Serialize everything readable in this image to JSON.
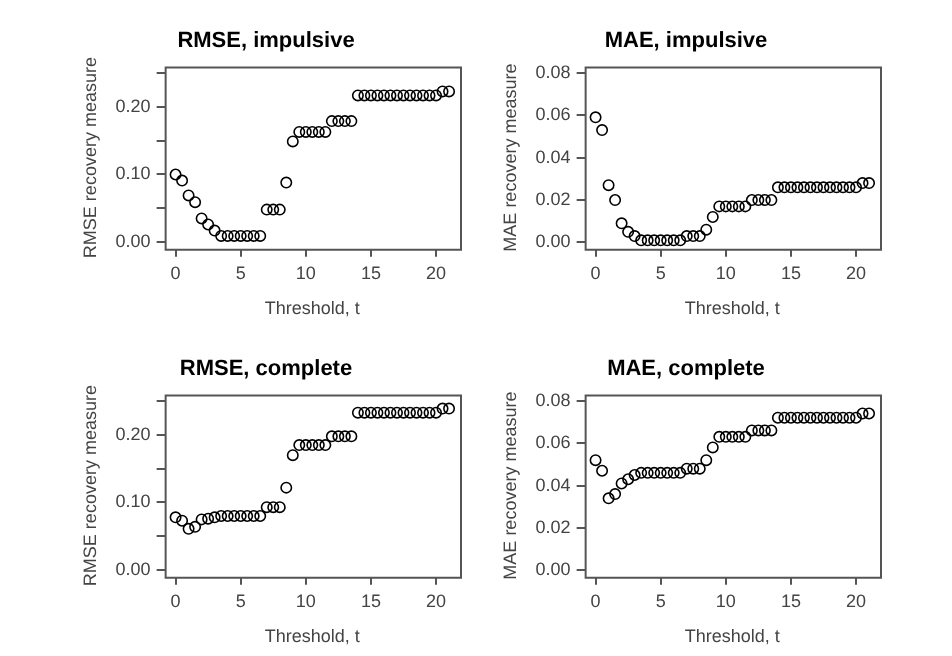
{
  "chart_data": [
    {
      "type": "scatter",
      "title": "RMSE, impulsive",
      "xlabel": "Threshold, t",
      "ylabel": "RMSE recovery measure",
      "marker": "circle",
      "color": "#000000",
      "x": [
        0,
        0.5,
        1,
        1.5,
        2,
        2.5,
        3,
        3.5,
        4,
        4.5,
        5,
        5.5,
        6,
        6.5,
        7,
        7.5,
        8,
        8.5,
        9,
        9.5,
        10,
        10.5,
        11,
        11.5,
        12,
        12.5,
        13,
        13.5,
        14,
        14.5,
        15,
        15.5,
        16,
        16.5,
        17,
        17.5,
        18,
        18.5,
        19,
        19.5,
        20,
        20.5,
        21
      ],
      "values": [
        0.1,
        0.091,
        0.069,
        0.059,
        0.035,
        0.026,
        0.017,
        0.009,
        0.009,
        0.009,
        0.009,
        0.009,
        0.009,
        0.009,
        0.048,
        0.048,
        0.048,
        0.088,
        0.149,
        0.163,
        0.163,
        0.163,
        0.163,
        0.163,
        0.179,
        0.179,
        0.179,
        0.179,
        0.217,
        0.217,
        0.217,
        0.217,
        0.217,
        0.217,
        0.217,
        0.217,
        0.217,
        0.217,
        0.217,
        0.217,
        0.217,
        0.223,
        0.223
      ],
      "xlim": [
        -0.84,
        21.84
      ],
      "xticks": [
        0,
        5,
        10,
        15,
        20
      ],
      "ylim": [
        -0.01,
        0.26
      ],
      "yticks": [
        {
          "value": 0,
          "label": "0.00"
        },
        {
          "value": 0.05,
          "label": null
        },
        {
          "value": 0.1,
          "label": "0.10"
        },
        {
          "value": 0.15,
          "label": null
        },
        {
          "value": 0.2,
          "label": "0.20"
        },
        {
          "value": 0.25,
          "label": null
        }
      ],
      "grid": false,
      "legend": false
    },
    {
      "type": "scatter",
      "title": "MAE, impulsive",
      "xlabel": "Threshold, t",
      "ylabel": "MAE recovery measure",
      "marker": "circle",
      "color": "#000000",
      "x": [
        0,
        0.5,
        1,
        1.5,
        2,
        2.5,
        3,
        3.5,
        4,
        4.5,
        5,
        5.5,
        6,
        6.5,
        7,
        7.5,
        8,
        8.5,
        9,
        9.5,
        10,
        10.5,
        11,
        11.5,
        12,
        12.5,
        13,
        13.5,
        14,
        14.5,
        15,
        15.5,
        16,
        16.5,
        17,
        17.5,
        18,
        18.5,
        19,
        19.5,
        20,
        20.5,
        21
      ],
      "values": [
        0.059,
        0.053,
        0.027,
        0.02,
        0.009,
        0.005,
        0.003,
        0.001,
        0.001,
        0.001,
        0.001,
        0.001,
        0.001,
        0.001,
        0.003,
        0.003,
        0.003,
        0.006,
        0.012,
        0.017,
        0.017,
        0.017,
        0.017,
        0.017,
        0.02,
        0.02,
        0.02,
        0.02,
        0.026,
        0.026,
        0.026,
        0.026,
        0.026,
        0.026,
        0.026,
        0.026,
        0.026,
        0.026,
        0.026,
        0.026,
        0.026,
        0.028,
        0.028
      ],
      "xlim": [
        -0.84,
        21.84
      ],
      "xticks": [
        0,
        5,
        10,
        15,
        20
      ],
      "ylim": [
        -0.003,
        0.083
      ],
      "yticks": [
        {
          "value": 0,
          "label": "0.00"
        },
        {
          "value": 0.02,
          "label": "0.02"
        },
        {
          "value": 0.04,
          "label": "0.04"
        },
        {
          "value": 0.06,
          "label": "0.06"
        },
        {
          "value": 0.08,
          "label": "0.08"
        }
      ],
      "grid": false,
      "legend": false
    },
    {
      "type": "scatter",
      "title": "RMSE, complete",
      "xlabel": "Threshold, t",
      "ylabel": "RMSE recovery measure",
      "marker": "circle",
      "color": "#000000",
      "x": [
        0,
        0.5,
        1,
        1.5,
        2,
        2.5,
        3,
        3.5,
        4,
        4.5,
        5,
        5.5,
        6,
        6.5,
        7,
        7.5,
        8,
        8.5,
        9,
        9.5,
        10,
        10.5,
        11,
        11.5,
        12,
        12.5,
        13,
        13.5,
        14,
        14.5,
        15,
        15.5,
        16,
        16.5,
        17,
        17.5,
        18,
        18.5,
        19,
        19.5,
        20,
        20.5,
        21
      ],
      "values": [
        0.078,
        0.073,
        0.061,
        0.064,
        0.075,
        0.076,
        0.078,
        0.08,
        0.08,
        0.08,
        0.08,
        0.08,
        0.08,
        0.08,
        0.093,
        0.093,
        0.093,
        0.122,
        0.17,
        0.185,
        0.185,
        0.185,
        0.185,
        0.185,
        0.198,
        0.198,
        0.198,
        0.198,
        0.233,
        0.233,
        0.233,
        0.233,
        0.233,
        0.233,
        0.233,
        0.233,
        0.233,
        0.233,
        0.233,
        0.233,
        0.233,
        0.239,
        0.239
      ],
      "xlim": [
        -0.84,
        21.84
      ],
      "xticks": [
        0,
        5,
        10,
        15,
        20
      ],
      "ylim": [
        -0.01,
        0.26
      ],
      "yticks": [
        {
          "value": 0,
          "label": "0.00"
        },
        {
          "value": 0.05,
          "label": null
        },
        {
          "value": 0.1,
          "label": "0.10"
        },
        {
          "value": 0.15,
          "label": null
        },
        {
          "value": 0.2,
          "label": "0.20"
        },
        {
          "value": 0.25,
          "label": null
        }
      ],
      "grid": false,
      "legend": false
    },
    {
      "type": "scatter",
      "title": "MAE, complete",
      "xlabel": "Threshold, t",
      "ylabel": "MAE recovery measure",
      "marker": "circle",
      "color": "#000000",
      "x": [
        0,
        0.5,
        1,
        1.5,
        2,
        2.5,
        3,
        3.5,
        4,
        4.5,
        5,
        5.5,
        6,
        6.5,
        7,
        7.5,
        8,
        8.5,
        9,
        9.5,
        10,
        10.5,
        11,
        11.5,
        12,
        12.5,
        13,
        13.5,
        14,
        14.5,
        15,
        15.5,
        16,
        16.5,
        17,
        17.5,
        18,
        18.5,
        19,
        19.5,
        20,
        20.5,
        21
      ],
      "values": [
        0.052,
        0.047,
        0.034,
        0.036,
        0.041,
        0.043,
        0.045,
        0.046,
        0.046,
        0.046,
        0.046,
        0.046,
        0.046,
        0.046,
        0.048,
        0.048,
        0.048,
        0.052,
        0.058,
        0.063,
        0.063,
        0.063,
        0.063,
        0.063,
        0.066,
        0.066,
        0.066,
        0.066,
        0.072,
        0.072,
        0.072,
        0.072,
        0.072,
        0.072,
        0.072,
        0.072,
        0.072,
        0.072,
        0.072,
        0.072,
        0.072,
        0.074,
        0.074
      ],
      "xlim": [
        -0.84,
        21.84
      ],
      "xticks": [
        0,
        5,
        10,
        15,
        20
      ],
      "ylim": [
        -0.003,
        0.083
      ],
      "yticks": [
        {
          "value": 0,
          "label": "0.00"
        },
        {
          "value": 0.02,
          "label": "0.02"
        },
        {
          "value": 0.04,
          "label": "0.04"
        },
        {
          "value": 0.06,
          "label": "0.06"
        },
        {
          "value": 0.08,
          "label": "0.08"
        }
      ],
      "grid": false,
      "legend": false
    }
  ]
}
